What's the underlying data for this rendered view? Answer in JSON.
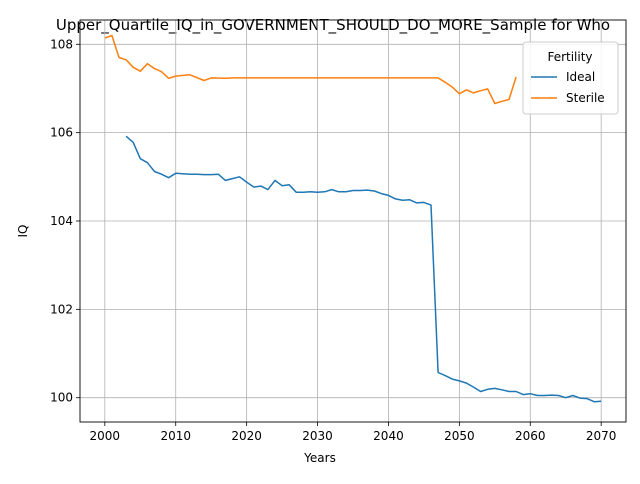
{
  "chart_data": {
    "type": "line",
    "title": "Upper_Quartile_IQ_in_GOVERNMENT_SHOULD_DO_MORE_Sample for Who",
    "xlabel": "Years",
    "ylabel": "IQ",
    "xlim": [
      1996.5,
      2073.5
    ],
    "ylim": [
      99.45,
      108.55
    ],
    "xticks": [
      2000,
      2010,
      2020,
      2030,
      2040,
      2050,
      2060,
      2070
    ],
    "yticks": [
      100,
      102,
      104,
      106,
      108
    ],
    "grid": true,
    "legend": {
      "title": "Fertility",
      "placement": "top-right"
    },
    "series": [
      {
        "name": "Ideal",
        "color": "#1f77b4",
        "x": [
          2003,
          2004,
          2005,
          2006,
          2007,
          2008,
          2009,
          2010,
          2011,
          2012,
          2013,
          2014,
          2015,
          2016,
          2017,
          2018,
          2019,
          2020,
          2021,
          2022,
          2023,
          2024,
          2025,
          2026,
          2027,
          2028,
          2029,
          2030,
          2031,
          2032,
          2033,
          2034,
          2035,
          2036,
          2037,
          2038,
          2039,
          2040,
          2041,
          2042,
          2043,
          2044,
          2045,
          2046,
          2047,
          2048,
          2049,
          2050,
          2051,
          2052,
          2053,
          2054,
          2055,
          2056,
          2057,
          2058,
          2059,
          2060,
          2061,
          2062,
          2063,
          2064,
          2065,
          2066,
          2067,
          2068,
          2069,
          2070
        ],
        "y": [
          105.92,
          105.78,
          105.41,
          105.32,
          105.12,
          105.06,
          104.98,
          105.08,
          105.07,
          105.06,
          105.06,
          105.05,
          105.05,
          105.06,
          104.92,
          104.96,
          105.0,
          104.88,
          104.77,
          104.79,
          104.71,
          104.92,
          104.8,
          104.82,
          104.65,
          104.65,
          104.66,
          104.65,
          104.66,
          104.71,
          104.66,
          104.66,
          104.69,
          104.69,
          104.7,
          104.68,
          104.62,
          104.58,
          104.5,
          104.47,
          104.48,
          104.41,
          104.42,
          104.36,
          100.57,
          100.5,
          100.42,
          100.38,
          100.33,
          100.24,
          100.14,
          100.19,
          100.21,
          100.18,
          100.14,
          100.14,
          100.07,
          100.09,
          100.05,
          100.05,
          100.06,
          100.05,
          100.0,
          100.05,
          99.99,
          99.98,
          99.91,
          99.92
        ]
      },
      {
        "name": "Sterile",
        "color": "#ff7f0e",
        "x": [
          2000,
          2001,
          2002,
          2003,
          2004,
          2005,
          2006,
          2007,
          2008,
          2009,
          2010,
          2012,
          2014,
          2015,
          2017,
          2018,
          2019,
          2020,
          2022,
          2024,
          2026,
          2028,
          2030,
          2032,
          2034,
          2036,
          2038,
          2040,
          2042,
          2044,
          2046,
          2047,
          2048,
          2049,
          2050,
          2051,
          2052,
          2053,
          2054,
          2055,
          2056,
          2057,
          2058
        ],
        "y": [
          108.14,
          108.2,
          107.7,
          107.65,
          107.48,
          107.39,
          107.56,
          107.45,
          107.38,
          107.23,
          107.28,
          107.31,
          107.18,
          107.24,
          107.23,
          107.24,
          107.24,
          107.24,
          107.24,
          107.24,
          107.24,
          107.24,
          107.24,
          107.24,
          107.24,
          107.24,
          107.24,
          107.24,
          107.24,
          107.24,
          107.24,
          107.24,
          107.14,
          107.03,
          106.88,
          106.97,
          106.9,
          106.95,
          106.99,
          106.66,
          106.71,
          106.75,
          107.26
        ]
      }
    ]
  }
}
